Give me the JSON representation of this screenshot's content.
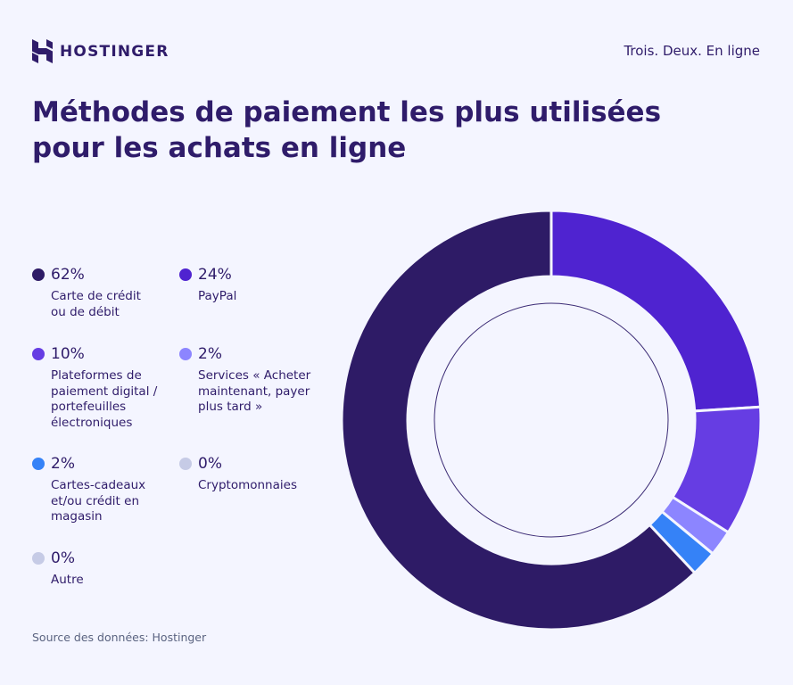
{
  "header": {
    "brand": "HOSTINGER",
    "tagline": "Trois. Deux. En ligne"
  },
  "title": "Méthodes de paiement les plus utilisées pour les achats en ligne",
  "source": "Source des données: Hostinger",
  "chart_data": {
    "type": "pie",
    "variant": "donut",
    "title": "Méthodes de paiement les plus utilisées pour les achats en ligne",
    "legend_position": "left",
    "slices": [
      {
        "label": "PayPal",
        "value": 24,
        "value_label": "24%",
        "color": "#4f23d0"
      },
      {
        "label": "Plateformes de paiement digital / portefeuilles électroniques",
        "value": 10,
        "value_label": "10%",
        "color": "#663de3"
      },
      {
        "label": "Services « Acheter maintenant, payer plus tard »",
        "value": 2,
        "value_label": "2%",
        "color": "#8c85ff"
      },
      {
        "label": "Cartes-cadeaux et/ou crédit en magasin",
        "value": 2,
        "value_label": "2%",
        "color": "#3582f7"
      },
      {
        "label": "Cryptomonnaies",
        "value": 0,
        "value_label": "0%",
        "color": "#c6cbe6"
      },
      {
        "label": "Autre",
        "value": 0,
        "value_label": "0%",
        "color": "#c6cbe6"
      },
      {
        "label": "Carte de crédit ou de débit",
        "value": 62,
        "value_label": "62%",
        "color": "#2e1b66"
      }
    ]
  },
  "legend": [
    {
      "pct": "62%",
      "label": "Carte de crédit ou de débit",
      "color": "#2e1b66"
    },
    {
      "pct": "24%",
      "label": "PayPal",
      "color": "#4f23d0"
    },
    {
      "pct": "10%",
      "label": "Plateformes de paiement digital / portefeuilles électroniques",
      "color": "#663de3"
    },
    {
      "pct": "2%",
      "label": "Services « Acheter maintenant, payer plus tard »",
      "color": "#8c85ff"
    },
    {
      "pct": "2%",
      "label": "Cartes-cadeaux et/ou crédit en magasin",
      "color": "#3582f7"
    },
    {
      "pct": "0%",
      "label": "Cryptomonnaies",
      "color": "#c6cbe6"
    },
    {
      "pct": "0%",
      "label": "Autre",
      "color": "#c6cbe6"
    }
  ]
}
